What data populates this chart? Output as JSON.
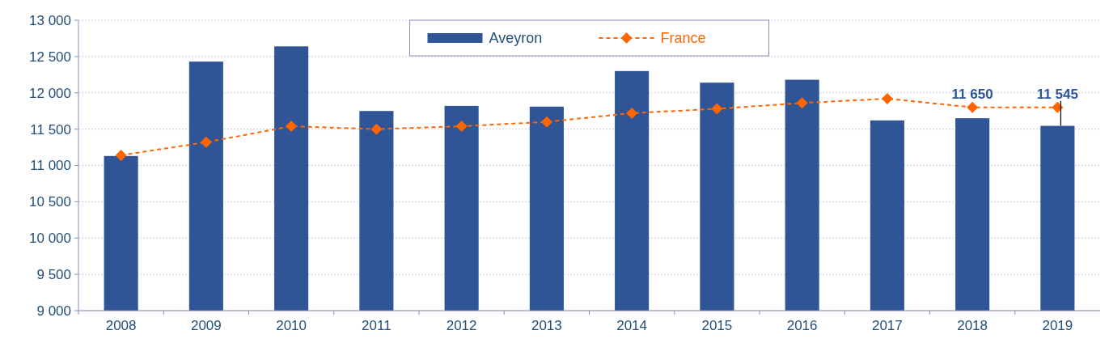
{
  "chart_data": {
    "type": "bar",
    "categories": [
      "2008",
      "2009",
      "2010",
      "2011",
      "2012",
      "2013",
      "2014",
      "2015",
      "2016",
      "2017",
      "2018",
      "2019"
    ],
    "series": [
      {
        "name": "Aveyron",
        "color": "#2f5597",
        "values": [
          11130,
          12430,
          12640,
          11750,
          11820,
          11810,
          12300,
          12140,
          12180,
          11620,
          11650,
          11545
        ],
        "value_labels": [
          null,
          null,
          null,
          null,
          null,
          null,
          null,
          null,
          null,
          null,
          "11 650",
          "11 545"
        ]
      },
      {
        "name": "France",
        "type": "line",
        "color": "#ff6600",
        "marker": "diamond",
        "line_style": "dashed",
        "values": [
          11140,
          11320,
          11540,
          11500,
          11540,
          11600,
          11720,
          11780,
          11860,
          11920,
          11800,
          11800
        ]
      }
    ],
    "ylim": [
      9000,
      13000
    ],
    "yticks": [
      {
        "value": 9000,
        "label": "9 000"
      },
      {
        "value": 9500,
        "label": "9 500"
      },
      {
        "value": 10000,
        "label": "10 000"
      },
      {
        "value": 10500,
        "label": "10 500"
      },
      {
        "value": 11000,
        "label": "11 000"
      },
      {
        "value": 11500,
        "label": "11 500"
      },
      {
        "value": 12000,
        "label": "12 000"
      },
      {
        "value": 12500,
        "label": "12 500"
      },
      {
        "value": 13000,
        "label": "13 000"
      }
    ],
    "grid": "y",
    "legend": "top"
  }
}
